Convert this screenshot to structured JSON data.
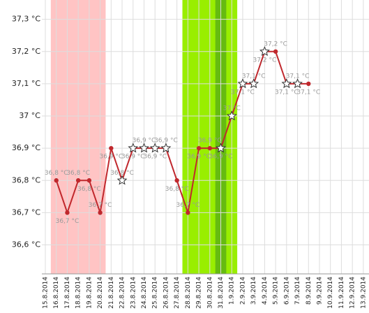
{
  "chart_data": {
    "type": "line",
    "categories": [
      "15.8.2014",
      "16.8.2014",
      "17.8.2014",
      "18.8.2014",
      "19.8.2014",
      "20.8.2014",
      "21.8.2014",
      "22.8.2014",
      "23.8.2014",
      "24.8.2014",
      "25.8.2014",
      "26.8.2014",
      "27.8.2014",
      "28.8.2014",
      "29.8.2014",
      "30.8.2014",
      "31.8.2014",
      "1.9.2014",
      "2.9.2014",
      "3.9.2014",
      "4.9.2014",
      "5.9.2014",
      "6.9.2014",
      "7.9.2014",
      "8.9.2014",
      "9.9.2014",
      "10.9.2014",
      "11.9.2014",
      "12.9.2014",
      "13.9.2014"
    ],
    "series": [
      {
        "color": "#c0282d",
        "values": [
          null,
          36.8,
          36.7,
          36.8,
          36.8,
          36.7,
          36.9,
          36.8,
          36.9,
          36.9,
          36.9,
          36.9,
          36.8,
          36.7,
          36.9,
          36.9,
          36.9,
          37.0,
          37.1,
          37.1,
          37.2,
          37.2,
          37.1,
          37.1,
          37.1,
          null,
          null,
          null,
          null,
          null
        ],
        "value_labels": [
          null,
          "36,8 °C",
          "36,7 °C",
          "36,8 °C",
          "36,8 °C",
          "36,7 °C",
          "36,9 °C",
          "36,8 °C",
          "36,9 °C",
          "36,9 °C",
          "36,9 °C",
          "36,9 °C",
          "36,8 °C",
          "36,7 °C",
          "36,9 °C",
          "36,9 °C",
          "36,9 °C",
          "37 °C",
          "37,1 °C",
          "37,1 °C",
          "37,2 °C",
          "37,2 °C",
          "37,1 °C",
          "37,1 °C",
          "37,1 °C",
          null,
          null,
          null,
          null,
          null
        ],
        "markers": [
          null,
          "dot",
          "dot",
          "dot",
          "dot",
          "dot",
          "dot",
          "star",
          "star",
          "star",
          "star",
          "star",
          "dot",
          "dot",
          "dot",
          "dot",
          "star",
          "star",
          "star",
          "star",
          "star",
          "dot",
          "star",
          "star",
          "dot",
          null,
          null,
          null,
          null,
          null
        ]
      }
    ],
    "bands": [
      {
        "from": "16.8.2014",
        "to": "20.8.2014",
        "color": "#ffc4c4"
      },
      {
        "from": "28.8.2014",
        "to": "1.9.2014",
        "color": "#99ee00"
      },
      {
        "from": "31.8.2014",
        "to": "31.8.2014",
        "color": "#66bb11"
      }
    ],
    "ylim": [
      36.51,
      37.36
    ],
    "yticks": [
      {
        "value": 36.6,
        "label": "36,6 °C"
      },
      {
        "value": 36.7,
        "label": "36,7 °C"
      },
      {
        "value": 36.8,
        "label": "36,8 °C"
      },
      {
        "value": 36.9,
        "label": "36,9 °C"
      },
      {
        "value": 37.0,
        "label": "37 °C"
      },
      {
        "value": 37.1,
        "label": "37,1 °C"
      },
      {
        "value": 37.2,
        "label": "37,2 °C"
      },
      {
        "value": 37.3,
        "label": "37,3 °C"
      }
    ],
    "grid": true
  }
}
